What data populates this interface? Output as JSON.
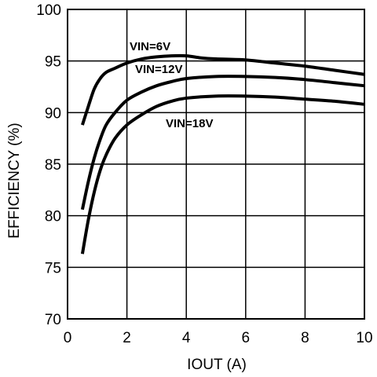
{
  "chart_data": {
    "type": "line",
    "xlabel": "IOUT (A)",
    "ylabel": "EFFICIENCY (%)",
    "xlim": [
      0,
      10
    ],
    "ylim": [
      70,
      100
    ],
    "x_ticks": [
      "0",
      "2",
      "4",
      "6",
      "8",
      "10"
    ],
    "y_ticks": [
      "70",
      "75",
      "80",
      "85",
      "90",
      "95",
      "100"
    ],
    "grid": true,
    "series": [
      {
        "name": "VIN=6V",
        "x": [
          0.5,
          0.7,
          0.9,
          1.1,
          1.3,
          1.6,
          2.0,
          2.5,
          3.0,
          3.5,
          4.0,
          4.5,
          5.0,
          6.0,
          7.0,
          8.0,
          9.0,
          10.0
        ],
        "y": [
          88.8,
          90.6,
          92.3,
          93.3,
          93.9,
          94.3,
          94.8,
          95.2,
          95.4,
          95.5,
          95.5,
          95.3,
          95.2,
          95.1,
          94.8,
          94.5,
          94.1,
          93.7
        ]
      },
      {
        "name": "VIN=12V",
        "x": [
          0.5,
          0.7,
          0.9,
          1.1,
          1.3,
          1.6,
          2.0,
          2.5,
          3.0,
          3.5,
          4.0,
          5.0,
          6.0,
          7.0,
          8.0,
          9.0,
          10.0
        ],
        "y": [
          80.6,
          83.3,
          85.6,
          87.4,
          88.8,
          90.0,
          91.2,
          92.0,
          92.6,
          93.0,
          93.3,
          93.5,
          93.5,
          93.4,
          93.2,
          92.9,
          92.6
        ]
      },
      {
        "name": "VIN=18V",
        "x": [
          0.5,
          0.7,
          0.9,
          1.1,
          1.3,
          1.6,
          2.0,
          2.5,
          3.0,
          3.5,
          4.0,
          5.0,
          6.0,
          7.0,
          8.0,
          9.0,
          10.0
        ],
        "y": [
          76.3,
          79.6,
          82.3,
          84.4,
          85.9,
          87.5,
          88.8,
          89.8,
          90.6,
          91.1,
          91.4,
          91.6,
          91.6,
          91.5,
          91.3,
          91.1,
          90.8
        ]
      }
    ]
  }
}
